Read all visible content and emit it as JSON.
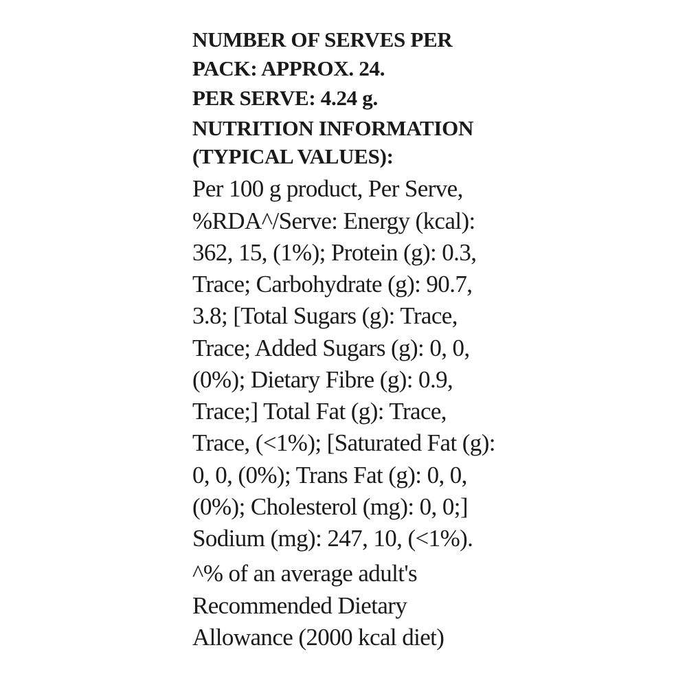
{
  "heading_lines": [
    "NUMBER OF SERVES PER",
    "PACK: APPROX. 24.",
    "PER SERVE: 4.24 g.",
    "NUTRITION INFORMATION",
    "(TYPICAL VALUES):"
  ],
  "body_lines": [
    "Per 100 g product, Per Serve,",
    "%RDA^/Serve: Energy (kcal):",
    "362, 15, (1%); Protein (g): 0.3,",
    "Trace; Carbohydrate (g): 90.7,",
    "3.8; [Total Sugars (g): Trace,",
    "Trace; Added Sugars (g): 0, 0,",
    "(0%); Dietary Fibre (g): 0.9,",
    "Trace;] Total Fat (g): Trace,",
    "Trace, (<1%); [Saturated Fat (g):",
    "0, 0, (0%); Trans Fat (g): 0, 0,",
    "(0%); Cholesterol (mg): 0, 0;]",
    "Sodium (mg): 247, 10, (<1%)."
  ],
  "footnote_lines": [
    "^% of an average adult's",
    "Recommended Dietary",
    "Allowance (2000 kcal diet)"
  ]
}
